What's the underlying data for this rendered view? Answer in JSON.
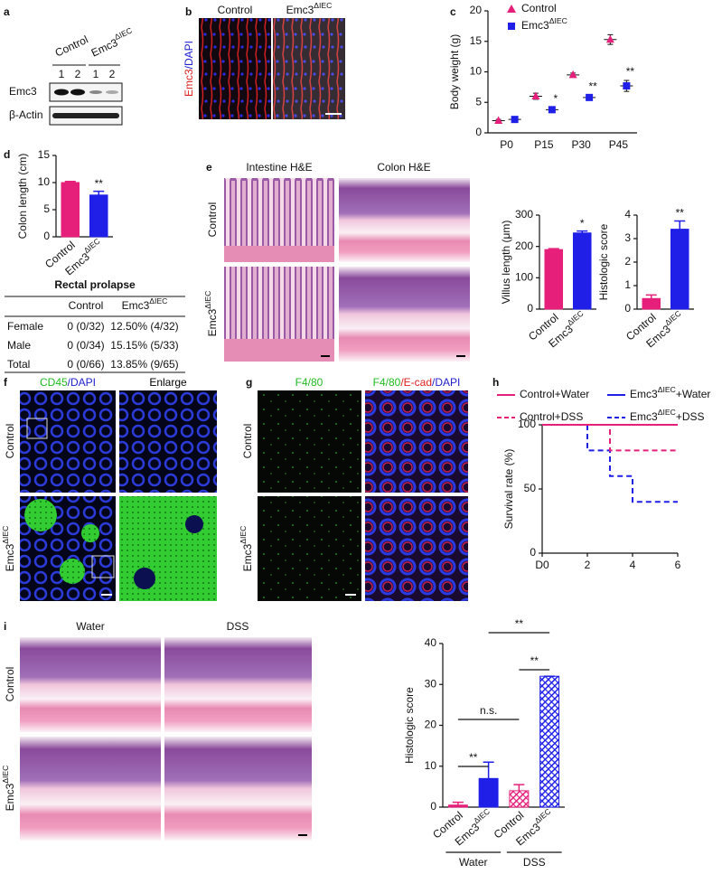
{
  "panels": {
    "labels": [
      "a",
      "b",
      "c",
      "d",
      "e",
      "f",
      "g",
      "h",
      "i"
    ],
    "a": {
      "groups": [
        "Control",
        "Emc3ΔIEC"
      ],
      "lanes": [
        "1",
        "2",
        "1",
        "2"
      ],
      "rows": [
        "Emc3",
        "β-Actin"
      ]
    },
    "b": {
      "stain": [
        {
          "text": "Emc3",
          "color": "#e02020"
        },
        {
          "text": "/DAPI",
          "color": "#2020d0"
        }
      ],
      "columns": [
        "Control",
        "Emc3ΔIEC"
      ]
    },
    "e": {
      "columns": [
        "Intestine H&E",
        "Colon H&E"
      ],
      "rows": [
        "Control",
        "Emc3ΔIEC"
      ]
    },
    "f": {
      "columns": [
        [
          {
            "text": "CD45",
            "color": "#22bb22"
          },
          {
            "text": "/DAPI",
            "color": "#2020d0"
          }
        ],
        [
          {
            "text": "Enlarge",
            "color": "#000000"
          }
        ]
      ],
      "rows": [
        "Control",
        "Emc3ΔIEC"
      ]
    },
    "g": {
      "columns": [
        [
          {
            "text": "F4/80",
            "color": "#22bb22"
          }
        ],
        [
          {
            "text": "F4/80",
            "color": "#22bb22"
          },
          {
            "text": "/E-cad",
            "color": "#e02020"
          },
          {
            "text": "/DAPI",
            "color": "#2020d0"
          }
        ]
      ],
      "rows": [
        "Control",
        "Emc3ΔIEC"
      ]
    },
    "i": {
      "columns": [
        "Water",
        "DSS"
      ],
      "rows": [
        "Control",
        "Emc3ΔIEC"
      ]
    }
  },
  "table": {
    "title": "Rectal prolapse",
    "header": [
      "Control",
      "Emc3ΔIEC"
    ],
    "rows": [
      [
        "Female",
        "0 (0/32)",
        "12.50% (4/32)"
      ],
      [
        "Male",
        "0 (0/34)",
        "15.15% (5/33)"
      ],
      [
        "Total",
        "0 (0/66)",
        "13.85% (9/65)"
      ]
    ]
  },
  "chart_data": [
    {
      "type": "dot",
      "ylabel": "Body weight (g)",
      "categories": [
        "P0",
        "P15",
        "P30",
        "P45"
      ],
      "series": [
        {
          "name": "Control",
          "color": "#e6207a",
          "marker": "triangle",
          "values": [
            2,
            6,
            9.5,
            15.3
          ],
          "errors": [
            0.2,
            0.5,
            0.3,
            0.8
          ]
        },
        {
          "name": "Emc3ΔIEC",
          "color": "#1f1fe8",
          "marker": "square",
          "values": [
            2.2,
            3.8,
            5.8,
            7.7
          ],
          "errors": [
            0.2,
            0.4,
            0.4,
            0.9
          ]
        }
      ],
      "annotations": [
        null,
        "*",
        "**",
        "**"
      ],
      "ylim": [
        0,
        20
      ],
      "yticks": [
        0,
        5,
        10,
        15,
        20
      ]
    },
    {
      "type": "bar",
      "ylabel": "Colon length (cm)",
      "categories": [
        "Control",
        "Emc3ΔIEC"
      ],
      "values": [
        10,
        7.7
      ],
      "errors": [
        0.2,
        0.7
      ],
      "colors": [
        "#e6207a",
        "#1f1fe8"
      ],
      "annotations": [
        null,
        "**"
      ],
      "ylim": [
        0,
        15
      ],
      "yticks": [
        0,
        5,
        10,
        15
      ]
    },
    {
      "type": "bar",
      "ylabel": "Villus length (μm)",
      "categories": [
        "Control",
        "Emc3ΔIEC"
      ],
      "values": [
        190,
        243
      ],
      "errors": [
        3,
        6
      ],
      "colors": [
        "#e6207a",
        "#1f1fe8"
      ],
      "annotations": [
        null,
        "*"
      ],
      "ylim": [
        0,
        300
      ],
      "yticks": [
        0,
        100,
        200,
        300
      ]
    },
    {
      "type": "bar",
      "ylabel": "Histologic score",
      "categories": [
        "Control",
        "Emc3ΔIEC"
      ],
      "values": [
        0.45,
        3.4
      ],
      "errors": [
        0.15,
        0.35
      ],
      "colors": [
        "#e6207a",
        "#1f1fe8"
      ],
      "annotations": [
        null,
        "**"
      ],
      "ylim": [
        0,
        4
      ],
      "yticks": [
        0,
        1,
        2,
        3,
        4
      ]
    },
    {
      "type": "line",
      "ylabel": "Survival rate (%)",
      "x": [
        0,
        2,
        2,
        3,
        3,
        4,
        4,
        6
      ],
      "series": [
        {
          "name": "Control+Water",
          "color": "#e6207a",
          "dash": false,
          "values": [
            100,
            100,
            100,
            100,
            100,
            100,
            100,
            100
          ]
        },
        {
          "name": "Control+DSS",
          "color": "#e6207a",
          "dash": true,
          "values": [
            100,
            100,
            100,
            100,
            80,
            80,
            80,
            80
          ]
        },
        {
          "name": "Emc3ΔIEC+Water",
          "color": "#1f1fe8",
          "dash": false,
          "values": [
            100,
            100,
            100,
            100,
            100,
            100,
            100,
            100
          ]
        },
        {
          "name": "Emc3ΔIEC+DSS",
          "color": "#1f1fe8",
          "dash": true,
          "values": [
            100,
            100,
            80,
            80,
            60,
            60,
            40,
            40
          ]
        }
      ],
      "xlim": [
        0,
        6
      ],
      "xticks": [
        {
          "value": 0,
          "label": "D0"
        },
        2,
        4,
        6
      ],
      "ylim": [
        0,
        100
      ],
      "yticks": [
        0,
        50,
        100
      ]
    },
    {
      "type": "bar",
      "ylabel": "Histologic score",
      "categories": [
        "Control",
        "Emc3ΔIEC",
        "Control",
        "Emc3ΔIEC"
      ],
      "groups": [
        "Water",
        "DSS"
      ],
      "values": [
        0.5,
        7,
        4,
        32
      ],
      "errors": [
        0.7,
        4,
        1.5,
        0
      ],
      "colors": [
        "#e6207a",
        "#1f1fe8",
        "#e6207a",
        "#1f1fe8"
      ],
      "hatched": [
        false,
        false,
        true,
        true
      ],
      "annotations": [
        "**",
        "n.s.",
        "**",
        "**"
      ],
      "ylim": [
        0,
        40
      ],
      "yticks": [
        0,
        10,
        20,
        30,
        40
      ]
    }
  ]
}
